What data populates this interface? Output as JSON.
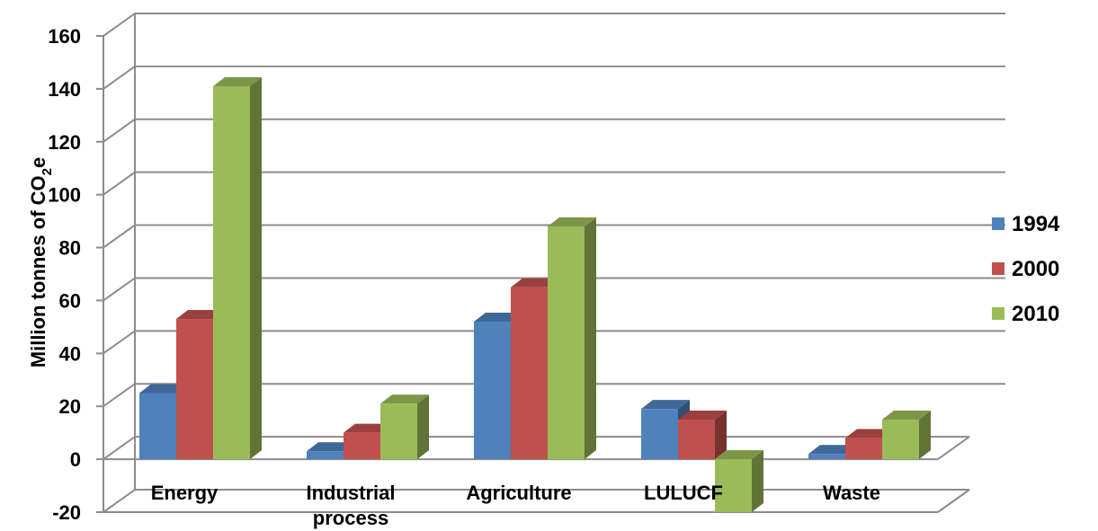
{
  "chart_data": {
    "type": "bar",
    "three_d": true,
    "categories": [
      "Energy",
      "Industrial process",
      "Agriculture",
      "LULUCF",
      "Waste"
    ],
    "category_label_lines": [
      [
        "Energy"
      ],
      [
        "Industrial",
        "process"
      ],
      [
        "Agriculture"
      ],
      [
        "LULUCF"
      ],
      [
        "Waste"
      ]
    ],
    "series": [
      {
        "name": "1994",
        "values": [
          25,
          3,
          52,
          19,
          2
        ],
        "color": "#4F81BD"
      },
      {
        "name": "2000",
        "values": [
          53,
          10,
          65,
          15,
          8
        ],
        "color": "#C0504D"
      },
      {
        "name": "2010",
        "values": [
          141,
          21,
          88,
          -20,
          15
        ],
        "color": "#9BBB59"
      }
    ],
    "ylabel": "Million tonnes of CO2e",
    "ylabel_parts": {
      "main": "Million tonnes of CO",
      "sub": "2",
      "tail": "e"
    },
    "ylim": [
      -20,
      160
    ],
    "yticks": [
      "160",
      "140",
      "120",
      "100",
      "80",
      "60",
      "40",
      "20",
      "0",
      "-20"
    ],
    "grid": true,
    "legend": "right"
  }
}
